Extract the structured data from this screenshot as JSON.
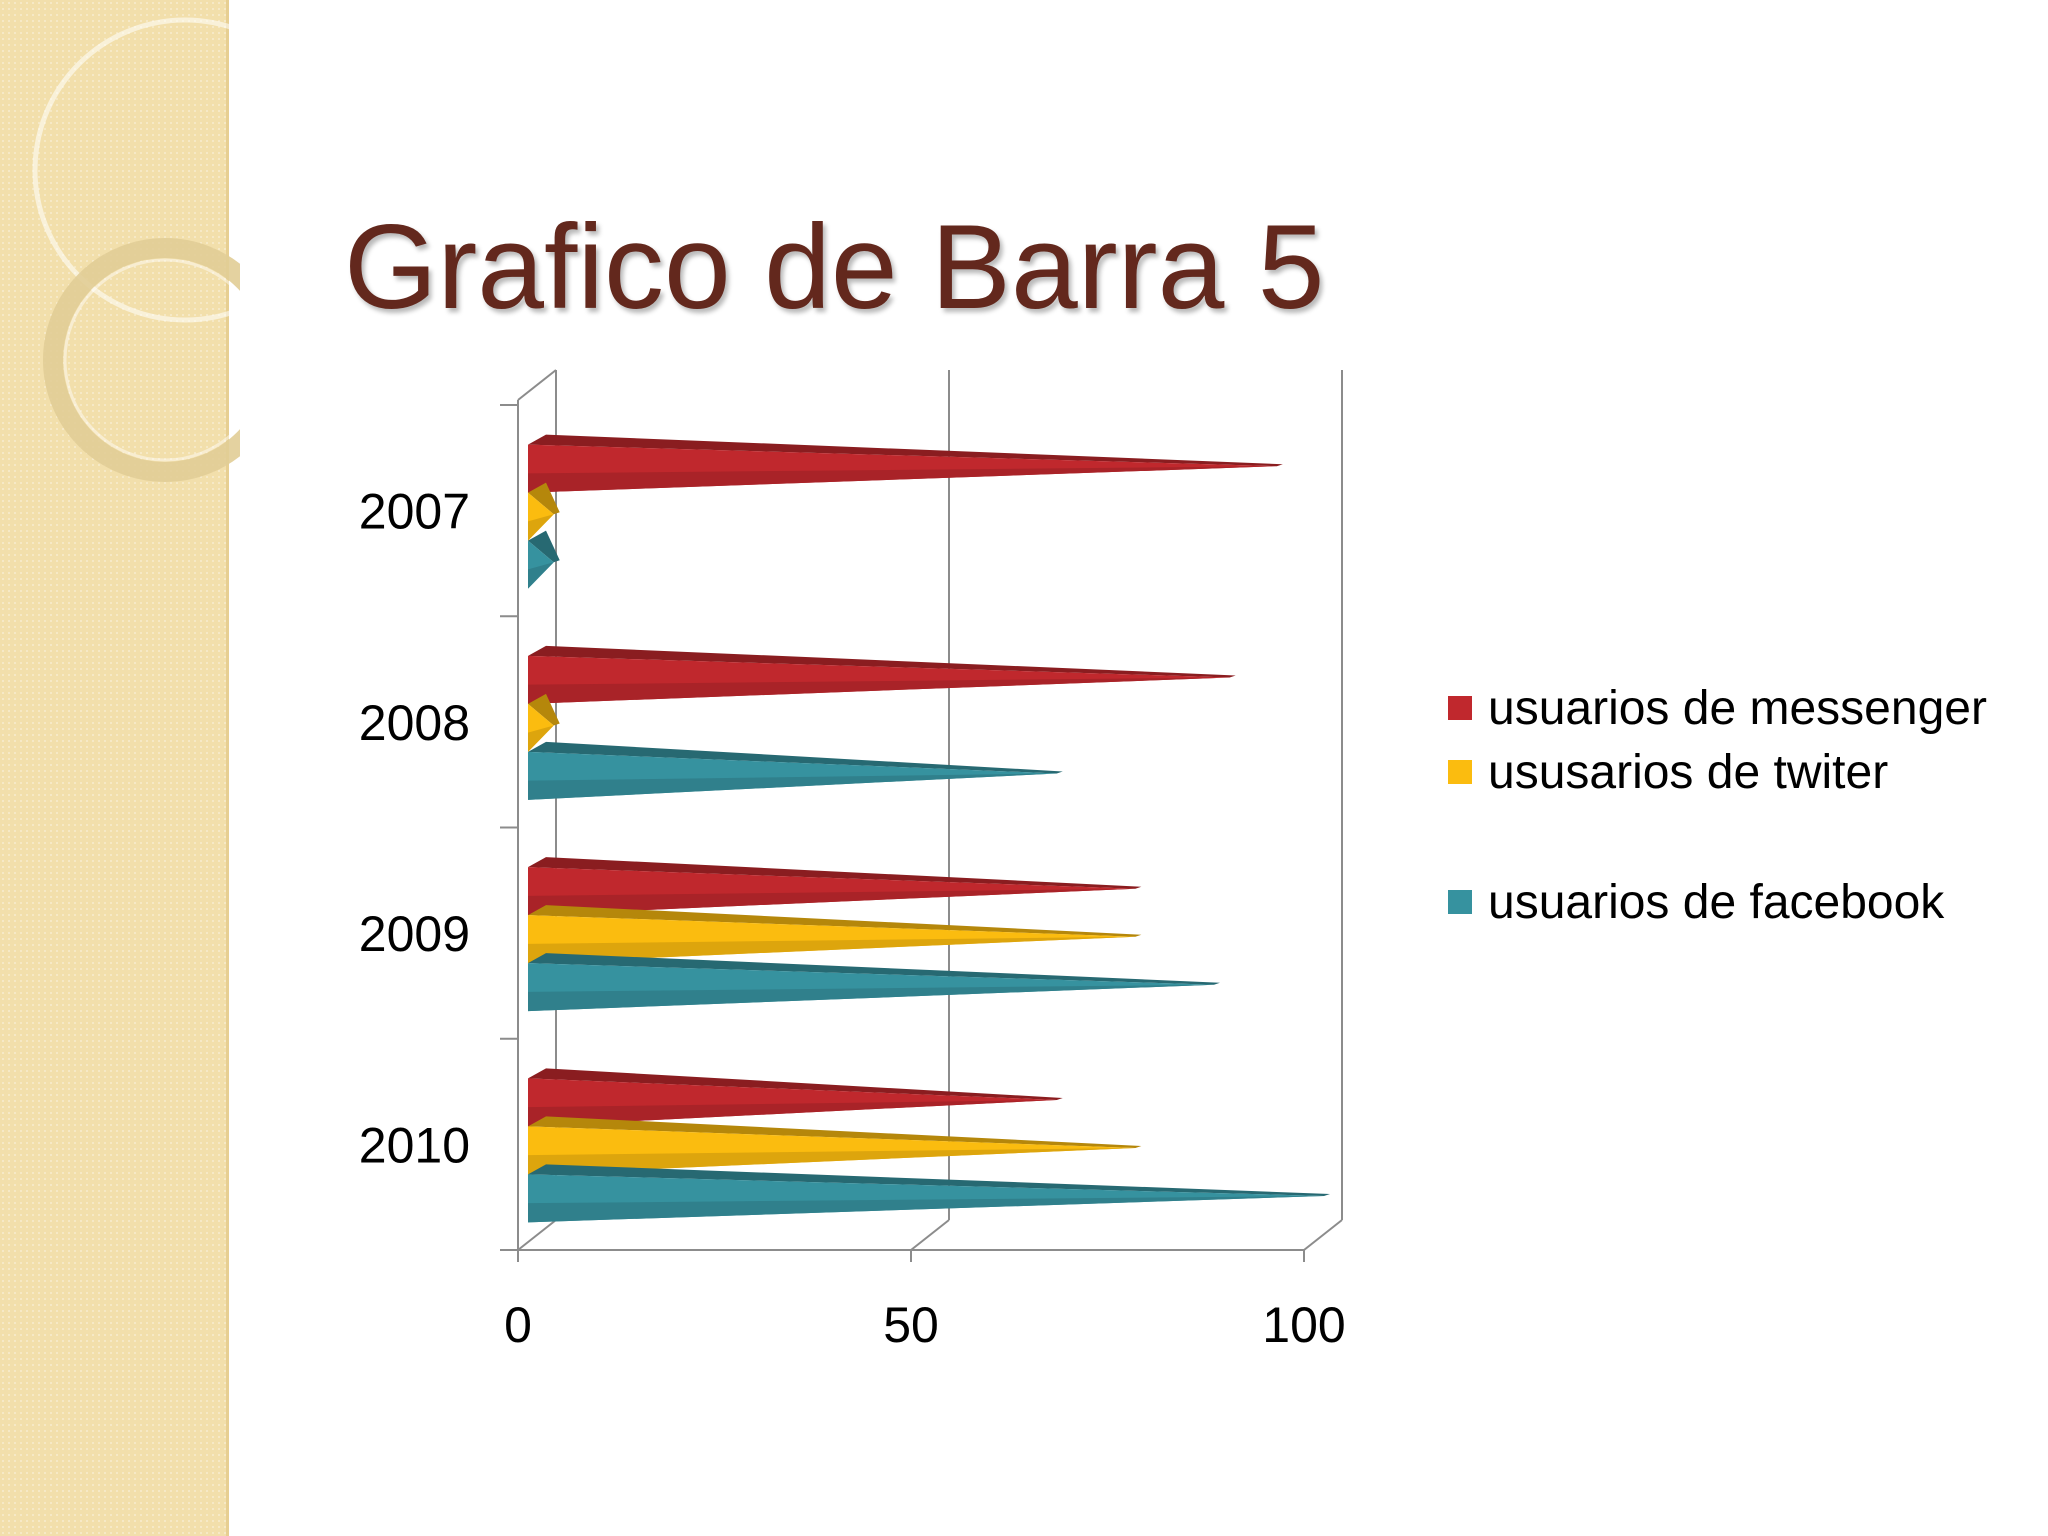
{
  "slide": {
    "title": "Grafico de Barra 5"
  },
  "colors": {
    "band": "#f2dfab",
    "title": "#63281d",
    "axis": "#8c8c8c"
  },
  "chart_data": {
    "type": "bar",
    "orientation": "horizontal",
    "style": "3d-cone",
    "title": "",
    "categories": [
      "2007",
      "2008",
      "2009",
      "2010"
    ],
    "xlim": [
      0,
      100
    ],
    "xticks": [
      "0",
      "50",
      "100"
    ],
    "grid": "vertical lines at 0, 50, 100",
    "legend_position": "right",
    "series": [
      {
        "name": "usuarios de messenger",
        "color": "#c0282d",
        "values": [
          94,
          88,
          76,
          66
        ]
      },
      {
        "name": "ususarios de twiter",
        "color": "#fbbc0f",
        "values": [
          2,
          2,
          76,
          76
        ]
      },
      {
        "name": "usuarios de facebook",
        "color": "#36929f",
        "values": [
          2,
          66,
          86,
          100
        ]
      }
    ]
  }
}
